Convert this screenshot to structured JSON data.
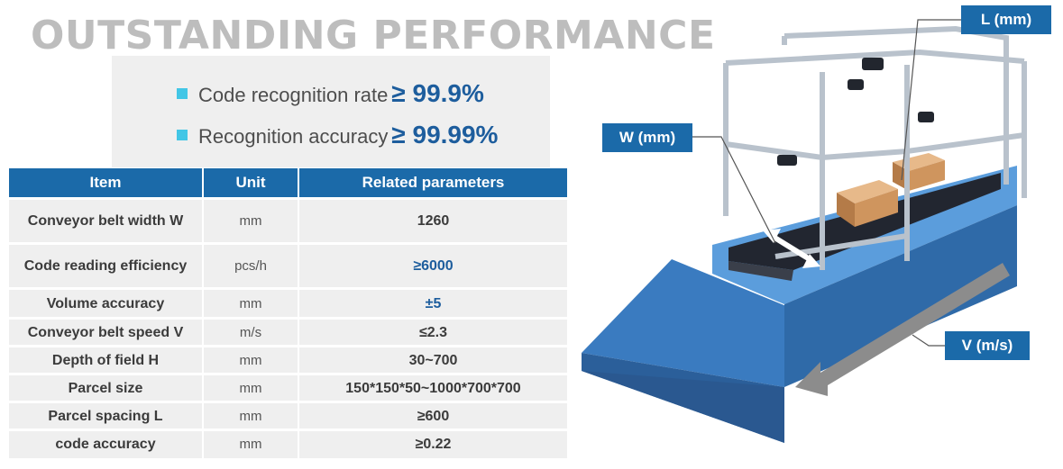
{
  "heading": "OUTSTANDING PERFORMANCE",
  "metrics": [
    {
      "label": "Code recognition rate",
      "value": "≥ 99.9%"
    },
    {
      "label": "Recognition accuracy",
      "value": "≥ 99.99%"
    }
  ],
  "table": {
    "headers": [
      "Item",
      "Unit",
      "Related parameters"
    ],
    "rows": [
      {
        "item": "Conveyor  belt width W",
        "unit": "mm",
        "value": "1260"
      },
      {
        "item": "Code reading efficiency",
        "unit": "pcs/h",
        "value": "≥6000"
      },
      {
        "item": "Volume accuracy",
        "unit": "mm",
        "value": "±5"
      },
      {
        "item": "Conveyor belt speed V",
        "unit": "m/s",
        "value": "≤2.3"
      },
      {
        "item": "Depth of field H",
        "unit": "mm",
        "value": "30~700"
      },
      {
        "item": "Parcel size",
        "unit": "mm",
        "value": "150*150*50~1000*700*700"
      },
      {
        "item": "Parcel spacing L",
        "unit": "mm",
        "value": "≥600"
      },
      {
        "item": "code accuracy",
        "unit": "mm",
        "value": "≥0.22"
      }
    ]
  },
  "diagram_labels": {
    "length": "L (mm)",
    "width": "W (mm)",
    "speed": "V (m/s)"
  },
  "colors": {
    "accent": "#1b6aa9",
    "value_text": "#1d5d9d",
    "bullet": "#42c6e6",
    "heading": "#bdbdbd",
    "panel": "#efefef",
    "conveyor": "#3e7fc4"
  }
}
